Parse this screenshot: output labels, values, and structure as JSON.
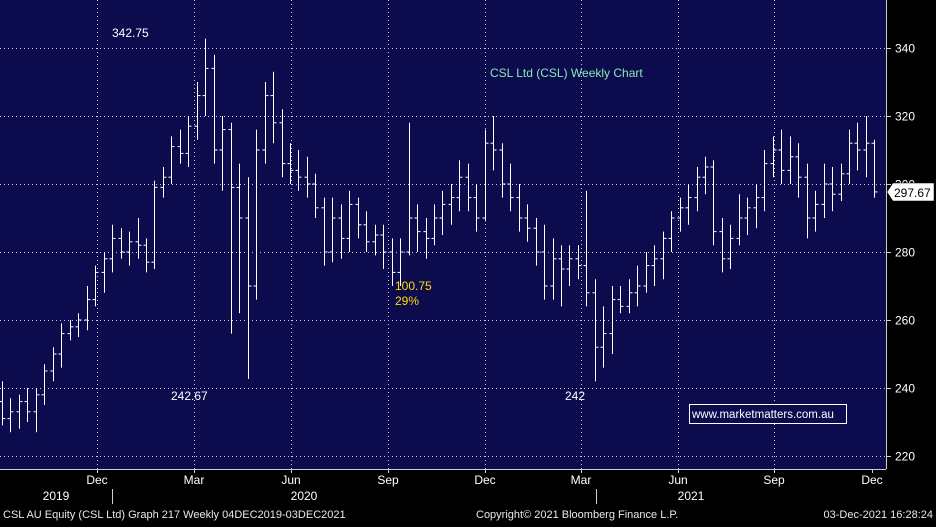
{
  "chart_data": {
    "type": "ohlc",
    "title": "CSL Ltd (CSL) Weekly Chart",
    "watermark": "www.marketmatters.com.au",
    "footer": {
      "left": "CSL AU Equity (CSL Ltd) Graph 217  Weekly 04DEC2019-03DEC2021",
      "center": "Copyright© 2021 Bloomberg Finance L.P.",
      "right": "03-Dec-2021 16:28:24"
    },
    "y_ticks": [
      "220",
      "240",
      "260",
      "280",
      "300",
      "320",
      "340"
    ],
    "ylim": [
      217,
      352
    ],
    "last_price": "297.67",
    "x_month_labels": [
      "Dec",
      "Mar",
      "Jun",
      "Sep",
      "Dec",
      "Mar",
      "Jun",
      "Sep",
      "Dec"
    ],
    "x_year_labels": [
      "2019",
      "2020",
      "2021"
    ],
    "annotations": [
      {
        "text": "342.75",
        "color": "#ffffff"
      },
      {
        "text": "242.67",
        "color": "#ffffff"
      },
      {
        "text": "100.75",
        "color": "#ffdd00"
      },
      {
        "text": "29%",
        "color": "#ffdd00"
      },
      {
        "text": "242",
        "color": "#ffffff"
      }
    ],
    "bars": [
      [
        236,
        242,
        229,
        231
      ],
      [
        231,
        237,
        227,
        233
      ],
      [
        233,
        238,
        228,
        236
      ],
      [
        236,
        240,
        230,
        233
      ],
      [
        233,
        240,
        227,
        238
      ],
      [
        238,
        247,
        235,
        245
      ],
      [
        245,
        252,
        242,
        250
      ],
      [
        250,
        259,
        246,
        256
      ],
      [
        256,
        260,
        254,
        258
      ],
      [
        258,
        262,
        255,
        260
      ],
      [
        260,
        270,
        257,
        266
      ],
      [
        266,
        276,
        264,
        274
      ],
      [
        274,
        280,
        268,
        278
      ],
      [
        278,
        288,
        274,
        284
      ],
      [
        284,
        287,
        278,
        280
      ],
      [
        280,
        286,
        276,
        283
      ],
      [
        283,
        290,
        278,
        282
      ],
      [
        282,
        284,
        274,
        277
      ],
      [
        277,
        301,
        275,
        299
      ],
      [
        299,
        305,
        296,
        302
      ],
      [
        302,
        314,
        300,
        311
      ],
      [
        311,
        316,
        306,
        309
      ],
      [
        309,
        320,
        305,
        317
      ],
      [
        317,
        330,
        313,
        326
      ],
      [
        326,
        342.75,
        320,
        334
      ],
      [
        334,
        338,
        306,
        310
      ],
      [
        310,
        320,
        298,
        316
      ],
      [
        316,
        318,
        256,
        299
      ],
      [
        299,
        306,
        262,
        290
      ],
      [
        290,
        302,
        242.67,
        270
      ],
      [
        270,
        316,
        266,
        310
      ],
      [
        310,
        330,
        306,
        326
      ],
      [
        326,
        333,
        312,
        318
      ],
      [
        318,
        322,
        302,
        306
      ],
      [
        306,
        312,
        300,
        304
      ],
      [
        304,
        310,
        298,
        302
      ],
      [
        302,
        308,
        296,
        300
      ],
      [
        300,
        303,
        290,
        293
      ],
      [
        293,
        296,
        276,
        280
      ],
      [
        280,
        296,
        277,
        290
      ],
      [
        290,
        294,
        278,
        284
      ],
      [
        284,
        298,
        280,
        294
      ],
      [
        294,
        296,
        284,
        288
      ],
      [
        288,
        292,
        280,
        283
      ],
      [
        283,
        288,
        279,
        285
      ],
      [
        285,
        288,
        275,
        280
      ],
      [
        280,
        284,
        270,
        274
      ],
      [
        274,
        284,
        270,
        280
      ],
      [
        280,
        318,
        279,
        290
      ],
      [
        290,
        294,
        280,
        286
      ],
      [
        286,
        290,
        278,
        284
      ],
      [
        284,
        294,
        282,
        290
      ],
      [
        290,
        298,
        285,
        294
      ],
      [
        294,
        300,
        288,
        296
      ],
      [
        296,
        307,
        292,
        302
      ],
      [
        302,
        306,
        292,
        296
      ],
      [
        296,
        300,
        286,
        290
      ],
      [
        290,
        316,
        289,
        312
      ],
      [
        312,
        320,
        304,
        310
      ],
      [
        310,
        312,
        296,
        300
      ],
      [
        300,
        306,
        292,
        296
      ],
      [
        296,
        300,
        286,
        290
      ],
      [
        290,
        294,
        283,
        287
      ],
      [
        287,
        290,
        276,
        280
      ],
      [
        280,
        288,
        266,
        270
      ],
      [
        270,
        284,
        266,
        278
      ],
      [
        278,
        282,
        264,
        275
      ],
      [
        275,
        282,
        270,
        278
      ],
      [
        278,
        282,
        272,
        276
      ],
      [
        276,
        298,
        264,
        268
      ],
      [
        268,
        272,
        242,
        252
      ],
      [
        252,
        264,
        246,
        256
      ],
      [
        256,
        270,
        250,
        266
      ],
      [
        266,
        270,
        262,
        264
      ],
      [
        264,
        272,
        262,
        268
      ],
      [
        268,
        276,
        264,
        270
      ],
      [
        270,
        280,
        268,
        276
      ],
      [
        276,
        282,
        270,
        278
      ],
      [
        278,
        286,
        272,
        284
      ],
      [
        284,
        292,
        280,
        290
      ],
      [
        290,
        296,
        286,
        293
      ],
      [
        293,
        300,
        288,
        296
      ],
      [
        296,
        305,
        292,
        302
      ],
      [
        302,
        308,
        297,
        305
      ],
      [
        305,
        307,
        282,
        286
      ],
      [
        286,
        290,
        274,
        278
      ],
      [
        278,
        288,
        275,
        284
      ],
      [
        284,
        297,
        282,
        290
      ],
      [
        290,
        296,
        285,
        293
      ],
      [
        293,
        300,
        287,
        296
      ],
      [
        296,
        310,
        292,
        306
      ],
      [
        306,
        314,
        302,
        310
      ],
      [
        310,
        316,
        300,
        304
      ],
      [
        304,
        314,
        300,
        308
      ],
      [
        308,
        312,
        296,
        302
      ],
      [
        302,
        306,
        284,
        290
      ],
      [
        290,
        298,
        286,
        294
      ],
      [
        294,
        306,
        290,
        300
      ],
      [
        300,
        305,
        292,
        297
      ],
      [
        297,
        306,
        295,
        303
      ],
      [
        303,
        316,
        300,
        312
      ],
      [
        312,
        318,
        304,
        310
      ],
      [
        310,
        320,
        302,
        312
      ],
      [
        312,
        313,
        296,
        297.67
      ]
    ]
  }
}
